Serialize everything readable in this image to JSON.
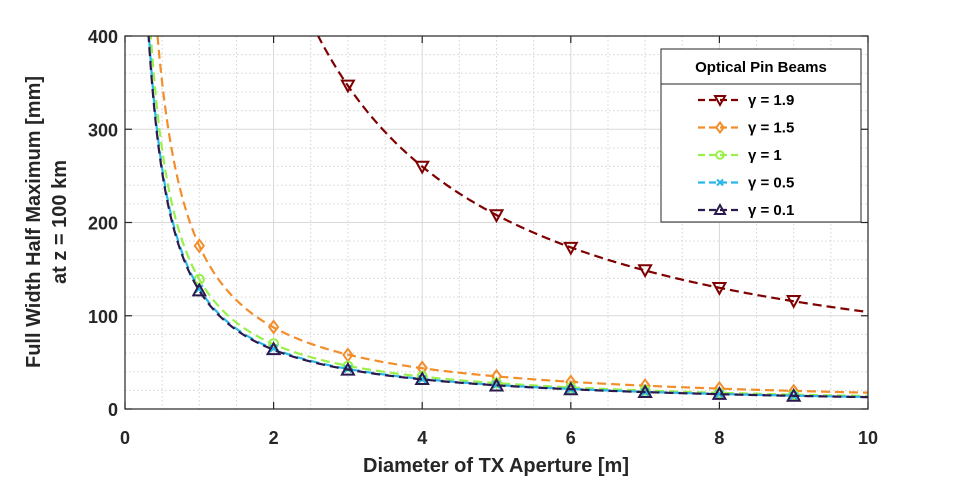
{
  "chart_data": {
    "type": "line",
    "title": "",
    "xlabel": "Diameter of TX Aperture [m]",
    "ylabel_line1": "Full Width Half Maximum [mm]",
    "ylabel_line2": "at z = 100 km",
    "xlim": [
      0,
      10
    ],
    "ylim": [
      0,
      400
    ],
    "xticks": [
      0,
      2,
      4,
      6,
      8,
      10
    ],
    "yticks": [
      0,
      100,
      200,
      300,
      400
    ],
    "grid": true,
    "minor_grid": true,
    "legend_title": "Optical Pin Beams",
    "legend_position": "top-right",
    "series": [
      {
        "name": "γ = 1.9",
        "color": "#7f0000",
        "marker": "triangle-down",
        "curve_constant": 1040,
        "markers": [
          {
            "x": 3,
            "y": 347
          },
          {
            "x": 4,
            "y": 260
          },
          {
            "x": 5,
            "y": 208
          },
          {
            "x": 6,
            "y": 173
          },
          {
            "x": 7,
            "y": 149
          },
          {
            "x": 8,
            "y": 130
          },
          {
            "x": 9,
            "y": 116
          }
        ]
      },
      {
        "name": "γ = 1.5",
        "color": "#f28e2b",
        "marker": "diamond",
        "curve_constant": 175,
        "markers": [
          {
            "x": 1,
            "y": 175
          },
          {
            "x": 2,
            "y": 88
          },
          {
            "x": 3,
            "y": 58
          },
          {
            "x": 4,
            "y": 44
          },
          {
            "x": 5,
            "y": 35
          },
          {
            "x": 6,
            "y": 29
          },
          {
            "x": 7,
            "y": 25
          },
          {
            "x": 8,
            "y": 22
          },
          {
            "x": 9,
            "y": 19
          }
        ]
      },
      {
        "name": "γ = 1",
        "color": "#99f04a",
        "marker": "circle",
        "curve_constant": 139,
        "markers": [
          {
            "x": 1,
            "y": 139
          },
          {
            "x": 2,
            "y": 70
          },
          {
            "x": 3,
            "y": 46
          },
          {
            "x": 4,
            "y": 35
          },
          {
            "x": 5,
            "y": 28
          },
          {
            "x": 6,
            "y": 23
          },
          {
            "x": 7,
            "y": 20
          },
          {
            "x": 8,
            "y": 17
          },
          {
            "x": 9,
            "y": 15
          }
        ]
      },
      {
        "name": "γ = 0.5",
        "color": "#29b6e8",
        "marker": "x",
        "curve_constant": 129,
        "markers": [
          {
            "x": 1,
            "y": 129
          },
          {
            "x": 2,
            "y": 65
          },
          {
            "x": 3,
            "y": 43
          },
          {
            "x": 4,
            "y": 32
          },
          {
            "x": 5,
            "y": 26
          },
          {
            "x": 6,
            "y": 21
          },
          {
            "x": 7,
            "y": 18
          },
          {
            "x": 8,
            "y": 16
          },
          {
            "x": 9,
            "y": 14
          }
        ]
      },
      {
        "name": "γ = 0.1",
        "color": "#2b1a4e",
        "marker": "triangle-up",
        "curve_constant": 127,
        "markers": [
          {
            "x": 1,
            "y": 127
          },
          {
            "x": 2,
            "y": 64
          },
          {
            "x": 3,
            "y": 42
          },
          {
            "x": 4,
            "y": 32
          },
          {
            "x": 5,
            "y": 25
          },
          {
            "x": 6,
            "y": 21
          },
          {
            "x": 7,
            "y": 18
          },
          {
            "x": 8,
            "y": 16
          },
          {
            "x": 9,
            "y": 14
          }
        ]
      }
    ]
  }
}
